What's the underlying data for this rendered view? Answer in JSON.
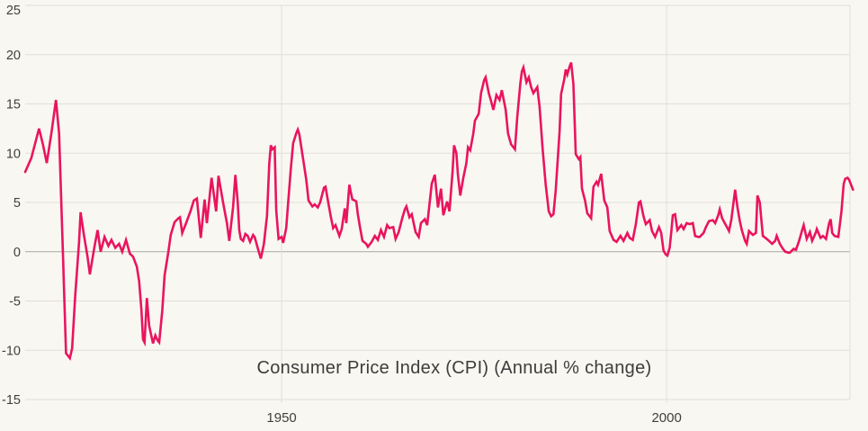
{
  "colors": {
    "background": "#f8f7f1",
    "line": "#e9145f",
    "grid": "#e1dfd8",
    "zero_line": "#a8a7a1",
    "text": "#3f3f3f"
  },
  "chart_data": {
    "type": "line",
    "title": "Consumer Price Index (CPI) (Annual % change)",
    "xlabel": "",
    "ylabel": "",
    "xlim": [
      1916.7,
      2024.2
    ],
    "ylim": [
      -15,
      25
    ],
    "grid": true,
    "legend": "none",
    "x_ticks": [
      1950,
      2000
    ],
    "y_ticks": [
      -15,
      -10,
      -5,
      0,
      5,
      10,
      15,
      20,
      25
    ],
    "series": [
      {
        "name": "CPI annual % change",
        "points": [
          [
            1916.7,
            8.1
          ],
          [
            1917.5,
            9.5
          ],
          [
            1918.5,
            12.5
          ],
          [
            1919.0,
            10.9
          ],
          [
            1919.5,
            9.0
          ],
          [
            1920.1,
            12.0
          ],
          [
            1920.7,
            15.4
          ],
          [
            1921.1,
            12.0
          ],
          [
            1921.6,
            0.0
          ],
          [
            1922.0,
            -10.3
          ],
          [
            1922.5,
            -10.8
          ],
          [
            1922.8,
            -9.8
          ],
          [
            1923.2,
            -4.5
          ],
          [
            1923.7,
            1.0
          ],
          [
            1923.9,
            4.0
          ],
          [
            1924.3,
            1.8
          ],
          [
            1924.8,
            -0.5
          ],
          [
            1925.1,
            -2.3
          ],
          [
            1925.7,
            0.5
          ],
          [
            1926.1,
            2.2
          ],
          [
            1926.5,
            0.0
          ],
          [
            1927.0,
            1.5
          ],
          [
            1927.5,
            0.6
          ],
          [
            1927.9,
            1.2
          ],
          [
            1928.4,
            0.4
          ],
          [
            1928.9,
            0.8
          ],
          [
            1929.3,
            0.0
          ],
          [
            1929.8,
            1.2
          ],
          [
            1930.3,
            -0.2
          ],
          [
            1930.7,
            -0.5
          ],
          [
            1931.2,
            -1.5
          ],
          [
            1931.5,
            -3.0
          ],
          [
            1931.8,
            -6.0
          ],
          [
            1932.0,
            -8.9
          ],
          [
            1932.2,
            -9.2
          ],
          [
            1932.5,
            -4.7
          ],
          [
            1932.8,
            -7.5
          ],
          [
            1933.3,
            -9.3
          ],
          [
            1933.6,
            -8.5
          ],
          [
            1933.9,
            -9.0
          ],
          [
            1934.1,
            -9.2
          ],
          [
            1934.5,
            -6.0
          ],
          [
            1934.8,
            -2.4
          ],
          [
            1935.3,
            0.0
          ],
          [
            1935.6,
            1.7
          ],
          [
            1936.1,
            3.0
          ],
          [
            1936.6,
            3.4
          ],
          [
            1936.8,
            3.5
          ],
          [
            1937.1,
            1.9
          ],
          [
            1937.6,
            2.9
          ],
          [
            1938.2,
            4.2
          ],
          [
            1938.6,
            5.2
          ],
          [
            1939.0,
            5.4
          ],
          [
            1939.5,
            1.4
          ],
          [
            1940.0,
            5.3
          ],
          [
            1940.3,
            2.9
          ],
          [
            1940.9,
            7.5
          ],
          [
            1941.5,
            4.1
          ],
          [
            1941.8,
            7.7
          ],
          [
            1942.4,
            5.0
          ],
          [
            1942.9,
            2.9
          ],
          [
            1943.2,
            1.1
          ],
          [
            1943.7,
            4.5
          ],
          [
            1944.0,
            7.8
          ],
          [
            1944.3,
            5.0
          ],
          [
            1944.5,
            2.2
          ],
          [
            1944.7,
            1.3
          ],
          [
            1945.0,
            1.1
          ],
          [
            1945.3,
            1.8
          ],
          [
            1945.6,
            1.6
          ],
          [
            1945.9,
            1.0
          ],
          [
            1946.3,
            1.7
          ],
          [
            1946.5,
            1.5
          ],
          [
            1947.0,
            0.1
          ],
          [
            1947.3,
            -0.7
          ],
          [
            1947.7,
            0.8
          ],
          [
            1948.1,
            3.6
          ],
          [
            1948.4,
            9.0
          ],
          [
            1948.6,
            10.8
          ],
          [
            1948.8,
            10.4
          ],
          [
            1949.1,
            10.6
          ],
          [
            1949.3,
            4.2
          ],
          [
            1949.6,
            1.3
          ],
          [
            1950.0,
            1.5
          ],
          [
            1950.2,
            0.9
          ],
          [
            1950.6,
            2.4
          ],
          [
            1950.9,
            5.5
          ],
          [
            1951.2,
            8.5
          ],
          [
            1951.5,
            11.0
          ],
          [
            1951.9,
            12.0
          ],
          [
            1952.1,
            12.4
          ],
          [
            1952.3,
            11.9
          ],
          [
            1952.8,
            9.4
          ],
          [
            1953.2,
            7.3
          ],
          [
            1953.5,
            5.2
          ],
          [
            1954.0,
            4.6
          ],
          [
            1954.3,
            4.8
          ],
          [
            1954.7,
            4.5
          ],
          [
            1955.0,
            5.0
          ],
          [
            1955.5,
            6.5
          ],
          [
            1955.7,
            6.6
          ],
          [
            1956.1,
            4.8
          ],
          [
            1956.4,
            3.5
          ],
          [
            1956.7,
            2.4
          ],
          [
            1957.0,
            2.7
          ],
          [
            1957.5,
            1.6
          ],
          [
            1957.8,
            2.3
          ],
          [
            1958.2,
            4.4
          ],
          [
            1958.4,
            2.9
          ],
          [
            1958.8,
            6.8
          ],
          [
            1959.0,
            6.0
          ],
          [
            1959.2,
            5.3
          ],
          [
            1959.5,
            5.2
          ],
          [
            1959.7,
            5.1
          ],
          [
            1959.9,
            3.8
          ],
          [
            1960.2,
            2.4
          ],
          [
            1960.5,
            1.1
          ],
          [
            1961.0,
            0.8
          ],
          [
            1961.2,
            0.5
          ],
          [
            1961.4,
            0.7
          ],
          [
            1961.7,
            1.0
          ],
          [
            1962.1,
            1.6
          ],
          [
            1962.5,
            1.2
          ],
          [
            1962.9,
            2.2
          ],
          [
            1963.3,
            1.5
          ],
          [
            1963.7,
            2.7
          ],
          [
            1964.0,
            2.4
          ],
          [
            1964.5,
            2.5
          ],
          [
            1964.8,
            1.3
          ],
          [
            1965.2,
            2.0
          ],
          [
            1965.7,
            3.5
          ],
          [
            1966.0,
            4.3
          ],
          [
            1966.2,
            4.6
          ],
          [
            1966.6,
            3.5
          ],
          [
            1966.9,
            3.8
          ],
          [
            1967.4,
            2.0
          ],
          [
            1967.8,
            1.5
          ],
          [
            1968.1,
            2.9
          ],
          [
            1968.6,
            3.3
          ],
          [
            1968.9,
            2.7
          ],
          [
            1969.5,
            6.9
          ],
          [
            1969.9,
            7.8
          ],
          [
            1970.3,
            4.5
          ],
          [
            1970.7,
            6.4
          ],
          [
            1971.0,
            3.7
          ],
          [
            1971.5,
            5.1
          ],
          [
            1971.8,
            4.1
          ],
          [
            1972.2,
            8.1
          ],
          [
            1972.4,
            10.8
          ],
          [
            1972.7,
            10.0
          ],
          [
            1972.9,
            7.8
          ],
          [
            1973.2,
            5.7
          ],
          [
            1973.6,
            7.5
          ],
          [
            1974.0,
            9.0
          ],
          [
            1974.2,
            10.6
          ],
          [
            1974.5,
            10.3
          ],
          [
            1974.9,
            12.0
          ],
          [
            1975.1,
            13.3
          ],
          [
            1975.6,
            14.0
          ],
          [
            1975.9,
            16.1
          ],
          [
            1976.3,
            17.4
          ],
          [
            1976.5,
            17.7
          ],
          [
            1976.9,
            16.1
          ],
          [
            1977.2,
            15.3
          ],
          [
            1977.5,
            14.4
          ],
          [
            1977.9,
            15.9
          ],
          [
            1978.3,
            15.4
          ],
          [
            1978.6,
            16.4
          ],
          [
            1979.1,
            14.4
          ],
          [
            1979.4,
            12.0
          ],
          [
            1979.8,
            10.9
          ],
          [
            1980.3,
            10.4
          ],
          [
            1980.6,
            13.6
          ],
          [
            1981.0,
            17.1
          ],
          [
            1981.2,
            18.3
          ],
          [
            1981.4,
            18.7
          ],
          [
            1981.8,
            17.2
          ],
          [
            1982.1,
            17.7
          ],
          [
            1982.4,
            16.7
          ],
          [
            1982.7,
            16.1
          ],
          [
            1983.2,
            16.7
          ],
          [
            1983.5,
            14.7
          ],
          [
            1983.9,
            10.4
          ],
          [
            1984.3,
            6.8
          ],
          [
            1984.7,
            4.1
          ],
          [
            1985.0,
            3.6
          ],
          [
            1985.3,
            3.8
          ],
          [
            1985.6,
            6.2
          ],
          [
            1986.1,
            12.2
          ],
          [
            1986.3,
            16.0
          ],
          [
            1986.7,
            17.5
          ],
          [
            1986.9,
            18.5
          ],
          [
            1987.1,
            18.0
          ],
          [
            1987.4,
            18.8
          ],
          [
            1987.6,
            19.2
          ],
          [
            1987.9,
            17.0
          ],
          [
            1988.2,
            9.9
          ],
          [
            1988.6,
            9.4
          ],
          [
            1988.8,
            9.6
          ],
          [
            1989.0,
            6.4
          ],
          [
            1989.4,
            5.2
          ],
          [
            1989.7,
            3.9
          ],
          [
            1990.2,
            3.4
          ],
          [
            1990.5,
            6.6
          ],
          [
            1990.9,
            7.1
          ],
          [
            1991.1,
            6.8
          ],
          [
            1991.5,
            7.9
          ],
          [
            1991.9,
            5.2
          ],
          [
            1992.3,
            4.5
          ],
          [
            1992.6,
            2.1
          ],
          [
            1993.1,
            1.2
          ],
          [
            1993.5,
            1.0
          ],
          [
            1994.0,
            1.6
          ],
          [
            1994.4,
            1.1
          ],
          [
            1994.9,
            1.9
          ],
          [
            1995.2,
            1.4
          ],
          [
            1995.6,
            1.2
          ],
          [
            1996.0,
            2.8
          ],
          [
            1996.4,
            5.0
          ],
          [
            1996.6,
            5.1
          ],
          [
            1997.0,
            3.6
          ],
          [
            1997.3,
            2.8
          ],
          [
            1997.8,
            3.2
          ],
          [
            1998.1,
            2.1
          ],
          [
            1998.5,
            1.5
          ],
          [
            1999.0,
            2.5
          ],
          [
            1999.3,
            1.9
          ],
          [
            1999.6,
            0.1
          ],
          [
            1999.9,
            -0.3
          ],
          [
            2000.1,
            -0.4
          ],
          [
            2000.4,
            0.4
          ],
          [
            2000.6,
            2.0
          ],
          [
            2000.8,
            3.7
          ],
          [
            2001.1,
            3.8
          ],
          [
            2001.4,
            2.2
          ],
          [
            2001.9,
            2.7
          ],
          [
            2002.2,
            2.3
          ],
          [
            2002.6,
            2.9
          ],
          [
            2003.0,
            2.8
          ],
          [
            2003.4,
            2.9
          ],
          [
            2003.7,
            1.6
          ],
          [
            2004.1,
            1.5
          ],
          [
            2004.3,
            1.5
          ],
          [
            2004.8,
            1.9
          ],
          [
            2005.1,
            2.5
          ],
          [
            2005.5,
            3.1
          ],
          [
            2006.0,
            3.2
          ],
          [
            2006.3,
            2.9
          ],
          [
            2006.7,
            3.7
          ],
          [
            2006.9,
            4.3
          ],
          [
            2007.2,
            3.4
          ],
          [
            2007.7,
            2.7
          ],
          [
            2008.1,
            2.1
          ],
          [
            2008.4,
            3.2
          ],
          [
            2008.9,
            6.3
          ],
          [
            2009.2,
            4.5
          ],
          [
            2009.5,
            3.1
          ],
          [
            2009.8,
            2.1
          ],
          [
            2010.2,
            1.1
          ],
          [
            2010.4,
            0.8
          ],
          [
            2010.7,
            2.1
          ],
          [
            2011.2,
            1.7
          ],
          [
            2011.6,
            1.9
          ],
          [
            2011.8,
            5.7
          ],
          [
            2012.1,
            5.0
          ],
          [
            2012.5,
            1.6
          ],
          [
            2013.0,
            1.3
          ],
          [
            2013.3,
            1.1
          ],
          [
            2013.7,
            0.8
          ],
          [
            2014.1,
            1.1
          ],
          [
            2014.3,
            1.6
          ],
          [
            2014.7,
            0.8
          ],
          [
            2015.1,
            0.3
          ],
          [
            2015.4,
            0.0
          ],
          [
            2015.8,
            -0.1
          ],
          [
            2016.0,
            -0.1
          ],
          [
            2016.5,
            0.3
          ],
          [
            2016.8,
            0.2
          ],
          [
            2017.2,
            1.1
          ],
          [
            2017.6,
            2.2
          ],
          [
            2017.8,
            2.7
          ],
          [
            2018.2,
            1.3
          ],
          [
            2018.6,
            2.0
          ],
          [
            2018.9,
            1.1
          ],
          [
            2019.4,
            2.0
          ],
          [
            2019.5,
            2.3
          ],
          [
            2020.0,
            1.4
          ],
          [
            2020.3,
            1.6
          ],
          [
            2020.7,
            1.3
          ],
          [
            2021.1,
            2.9
          ],
          [
            2021.3,
            3.3
          ],
          [
            2021.5,
            1.9
          ],
          [
            2021.8,
            1.6
          ],
          [
            2022.3,
            1.5
          ],
          [
            2022.7,
            4.1
          ],
          [
            2023.0,
            6.9
          ],
          [
            2023.2,
            7.4
          ],
          [
            2023.5,
            7.5
          ],
          [
            2023.7,
            7.3
          ],
          [
            2024.0,
            6.7
          ],
          [
            2024.2,
            6.3
          ]
        ]
      }
    ]
  }
}
